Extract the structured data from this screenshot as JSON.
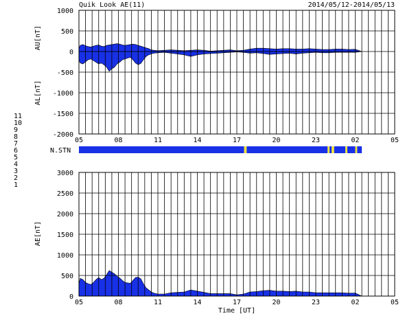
{
  "header": {
    "title": "Quik Look AE(11)",
    "date_range": "2014/05/12-2014/05/13"
  },
  "colors": {
    "fill": "#1830e6",
    "station_yellow": "#f0e040",
    "axis": "#000000",
    "legend": [
      "#1010c8",
      "#c800c8",
      "#20a0a0",
      "#a0a0a0",
      "#e00000",
      "#e0e040",
      "#e0e0a0",
      "#6060ff",
      "#e000e0",
      "#20e0e0"
    ]
  },
  "legend": {
    "items": [
      {
        "label": "11",
        "color": "#20e0e0"
      },
      {
        "label": "10",
        "color": "#e000e0"
      },
      {
        "label": "9",
        "color": "#3030ff"
      },
      {
        "label": "8",
        "color": "#e8e8b0"
      },
      {
        "label": "7",
        "color": "#e8e040"
      },
      {
        "label": "6",
        "color": "#e00000"
      },
      {
        "label": "5",
        "color": "#b0b0b0"
      },
      {
        "label": "4",
        "color": "#8080ff"
      },
      {
        "label": "3",
        "color": "#20a0a0"
      },
      {
        "label": "2",
        "color": "#c800c8"
      },
      {
        "label": "1",
        "color": "#1010c8"
      }
    ]
  },
  "station_panel": {
    "label": "N.STN",
    "segments": [
      {
        "start": 0,
        "end": 12.55,
        "color": "#1830e6"
      },
      {
        "start": 12.55,
        "end": 12.75,
        "color": "#f0e040"
      },
      {
        "start": 12.75,
        "end": 18.9,
        "color": "#1830e6"
      },
      {
        "start": 18.9,
        "end": 19.05,
        "color": "#f0e040"
      },
      {
        "start": 19.05,
        "end": 19.2,
        "color": "#1830e6"
      },
      {
        "start": 19.2,
        "end": 19.4,
        "color": "#f0e040"
      },
      {
        "start": 19.4,
        "end": 20.25,
        "color": "#1830e6"
      },
      {
        "start": 20.25,
        "end": 20.4,
        "color": "#f0e040"
      },
      {
        "start": 20.4,
        "end": 21.0,
        "color": "#1830e6"
      },
      {
        "start": 21.0,
        "end": 21.15,
        "color": "#f0e040"
      },
      {
        "start": 21.15,
        "end": 21.5,
        "color": "#1830e6"
      }
    ]
  },
  "chart_data": [
    {
      "type": "area",
      "ylabel_top": "AU[nT]",
      "ylabel_bottom": "AL[nT]",
      "ylim": [
        -2000,
        1000
      ],
      "yticks": [
        1000,
        500,
        0,
        -500,
        -1000,
        -1500,
        -2000
      ],
      "ytick_labels": [
        "1000",
        "500",
        "0",
        "-500",
        "-1000",
        "-1500",
        "-2000"
      ],
      "xlim": [
        0,
        24
      ],
      "xticks": [
        0,
        3,
        6,
        9,
        12,
        15,
        18,
        21,
        24
      ],
      "xtick_labels": [
        "05",
        "08",
        "11",
        "14",
        "17",
        "20",
        "23",
        "02",
        "05"
      ],
      "grid": true,
      "x": [
        0,
        0.1,
        0.3,
        0.5,
        0.7,
        0.9,
        1.1,
        1.3,
        1.5,
        1.7,
        1.9,
        2.1,
        2.3,
        2.5,
        2.7,
        2.9,
        3.1,
        3.3,
        3.5,
        3.7,
        3.9,
        4.1,
        4.3,
        4.5,
        4.7,
        4.9,
        5.1,
        5.3,
        5.5,
        5.7,
        6,
        6.5,
        7,
        7.5,
        8,
        8.5,
        9,
        9.5,
        10,
        10.5,
        11,
        11.5,
        12,
        12.5,
        13,
        13.5,
        14,
        14.5,
        15,
        15.5,
        16,
        16.5,
        17,
        17.5,
        18,
        18.5,
        19,
        19.5,
        20,
        20.5,
        21,
        21.5
      ],
      "series": [
        {
          "name": "AU",
          "values": [
            80,
            150,
            170,
            140,
            120,
            110,
            130,
            150,
            160,
            130,
            120,
            150,
            160,
            170,
            180,
            190,
            180,
            160,
            150,
            160,
            170,
            180,
            170,
            150,
            130,
            110,
            90,
            70,
            40,
            30,
            20,
            30,
            40,
            30,
            20,
            30,
            40,
            30,
            10,
            20,
            30,
            40,
            20,
            30,
            60,
            80,
            80,
            70,
            60,
            70,
            70,
            60,
            60,
            70,
            60,
            50,
            50,
            60,
            60,
            50,
            55,
            0
          ]
        },
        {
          "name": "AL",
          "values": [
            -200,
            -280,
            -300,
            -250,
            -200,
            -180,
            -220,
            -260,
            -300,
            -280,
            -320,
            -380,
            -480,
            -420,
            -380,
            -300,
            -260,
            -200,
            -180,
            -160,
            -140,
            -200,
            -280,
            -320,
            -290,
            -200,
            -120,
            -80,
            -60,
            -40,
            -30,
            -20,
            -40,
            -60,
            -80,
            -120,
            -80,
            -60,
            -50,
            -40,
            -30,
            -20,
            -10,
            -20,
            -40,
            -30,
            -50,
            -70,
            -60,
            -50,
            -40,
            -60,
            -40,
            -30,
            -20,
            -30,
            -30,
            -20,
            -20,
            -20,
            -20,
            0
          ]
        }
      ]
    },
    {
      "type": "area",
      "ylabel": "AE[nT]",
      "xlabel": "Time [UT]",
      "ylim": [
        0,
        3000
      ],
      "yticks": [
        0,
        500,
        1000,
        1500,
        2000,
        2500,
        3000
      ],
      "ytick_labels": [
        "0",
        "500",
        "1000",
        "1500",
        "2000",
        "2500",
        "3000"
      ],
      "xlim": [
        0,
        24
      ],
      "xticks": [
        0,
        3,
        6,
        9,
        12,
        15,
        18,
        21,
        24
      ],
      "xtick_labels": [
        "05",
        "08",
        "11",
        "14",
        "17",
        "20",
        "23",
        "02",
        "05"
      ],
      "grid": true,
      "x": [
        0,
        0.1,
        0.3,
        0.5,
        0.7,
        0.9,
        1.1,
        1.3,
        1.5,
        1.7,
        1.9,
        2.1,
        2.3,
        2.5,
        2.7,
        2.9,
        3.1,
        3.3,
        3.5,
        3.7,
        3.9,
        4.1,
        4.3,
        4.5,
        4.7,
        4.9,
        5.1,
        5.3,
        5.5,
        5.7,
        6,
        6.5,
        7,
        7.5,
        8,
        8.5,
        9,
        9.5,
        10,
        10.5,
        11,
        11.5,
        12,
        12.5,
        13,
        13.5,
        14,
        14.5,
        15,
        15.5,
        16,
        16.5,
        17,
        17.5,
        18,
        18.5,
        19,
        19.5,
        20,
        20.5,
        21,
        21.5
      ],
      "series": [
        {
          "name": "AE",
          "values": [
            300,
            430,
            400,
            330,
            300,
            280,
            330,
            400,
            450,
            400,
            430,
            520,
            620,
            580,
            540,
            480,
            440,
            380,
            330,
            320,
            310,
            380,
            450,
            460,
            420,
            300,
            200,
            150,
            100,
            70,
            50,
            50,
            80,
            90,
            100,
            150,
            120,
            90,
            60,
            60,
            60,
            60,
            30,
            50,
            100,
            110,
            130,
            140,
            120,
            120,
            110,
            120,
            100,
            100,
            80,
            80,
            80,
            80,
            80,
            70,
            75,
            0
          ]
        }
      ]
    }
  ]
}
